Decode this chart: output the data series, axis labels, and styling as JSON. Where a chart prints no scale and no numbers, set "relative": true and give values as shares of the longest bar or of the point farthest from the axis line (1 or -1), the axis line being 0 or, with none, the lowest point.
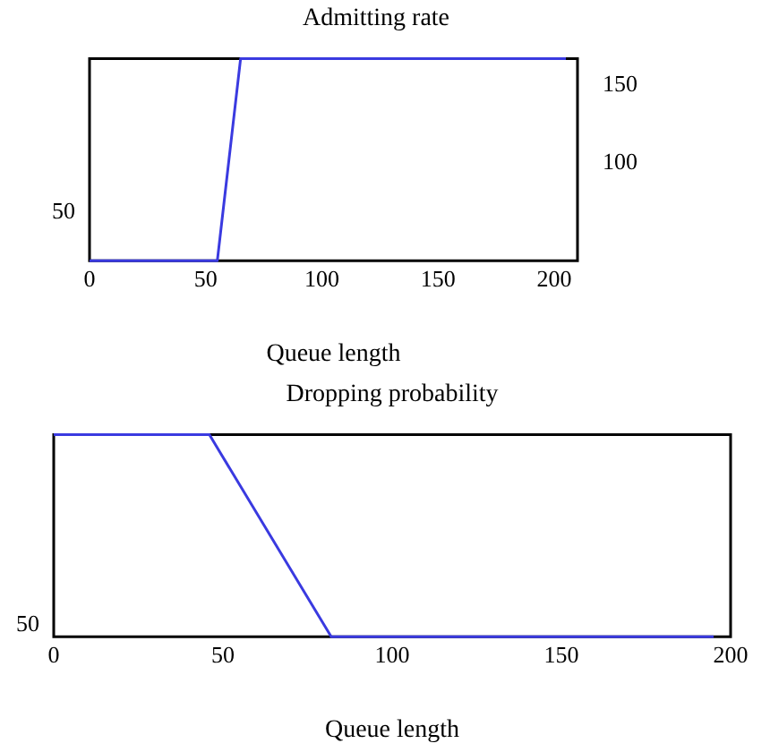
{
  "chart_data": [
    {
      "type": "line",
      "title": "Admitting rate",
      "xlabel": "Queue length",
      "x": [
        0,
        55,
        65,
        205
      ],
      "xlim": [
        0,
        210
      ],
      "xticks": [
        0,
        50,
        100,
        150,
        200
      ],
      "y2lim": [
        37,
        167
      ],
      "y2ticks": [
        100,
        150
      ],
      "grid": false,
      "legend": false,
      "annotations": [
        "50"
      ],
      "series": [
        {
          "color": "#3a3ae0",
          "axis": "y2",
          "values": [
            37,
            37,
            167,
            167
          ]
        }
      ]
    },
    {
      "type": "line",
      "title": "Dropping probability",
      "xlabel": "Queue length",
      "x": [
        0,
        46,
        82,
        195
      ],
      "xlim": [
        0,
        200
      ],
      "xticks": [
        0,
        50,
        100,
        150,
        200
      ],
      "relative": true,
      "grid": false,
      "legend": false,
      "annotations": [
        "50"
      ],
      "series": [
        {
          "color": "#3a3ae0",
          "values": [
            1,
            1,
            0,
            0
          ]
        }
      ]
    }
  ]
}
